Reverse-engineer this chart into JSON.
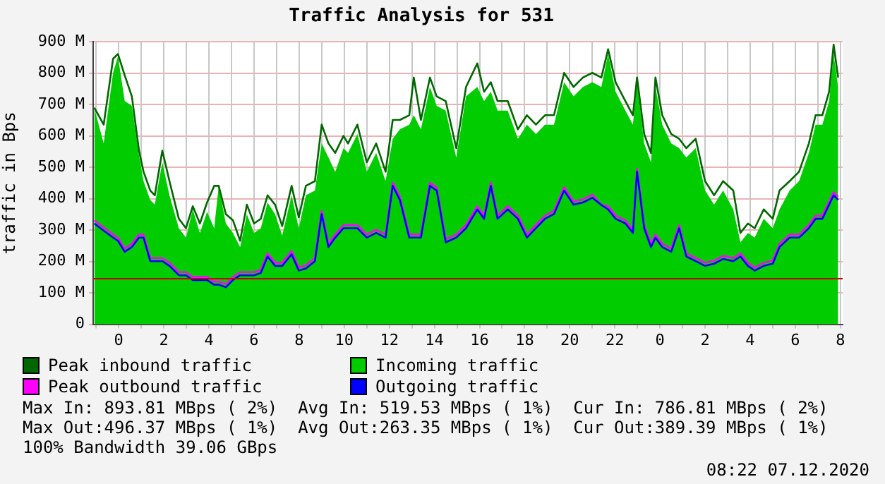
{
  "chart_data": {
    "type": "line",
    "title": "Traffic Analysis for 531",
    "ylabel": "traffic in Bps",
    "xlim": [
      "2020-12-05T22:52",
      "2020-12-07T08:06"
    ],
    "xticks": [
      {
        "value": "2020-12-05T23:00",
        "label": null
      },
      {
        "value": "2020-12-06T00:00",
        "label": "0"
      },
      {
        "value": "2020-12-06T01:00",
        "label": null
      },
      {
        "value": "2020-12-06T02:00",
        "label": "2"
      },
      {
        "value": "2020-12-06T03:00",
        "label": null
      },
      {
        "value": "2020-12-06T04:00",
        "label": "4"
      },
      {
        "value": "2020-12-06T05:00",
        "label": null
      },
      {
        "value": "2020-12-06T06:00",
        "label": "6"
      },
      {
        "value": "2020-12-06T07:00",
        "label": null
      },
      {
        "value": "2020-12-06T08:00",
        "label": "8"
      },
      {
        "value": "2020-12-06T09:00",
        "label": null
      },
      {
        "value": "2020-12-06T10:00",
        "label": "10"
      },
      {
        "value": "2020-12-06T11:00",
        "label": null
      },
      {
        "value": "2020-12-06T12:00",
        "label": "12"
      },
      {
        "value": "2020-12-06T13:00",
        "label": null
      },
      {
        "value": "2020-12-06T14:00",
        "label": "14"
      },
      {
        "value": "2020-12-06T15:00",
        "label": null
      },
      {
        "value": "2020-12-06T16:00",
        "label": "16"
      },
      {
        "value": "2020-12-06T17:00",
        "label": null
      },
      {
        "value": "2020-12-06T18:00",
        "label": "18"
      },
      {
        "value": "2020-12-06T19:00",
        "label": null
      },
      {
        "value": "2020-12-06T20:00",
        "label": "20"
      },
      {
        "value": "2020-12-06T21:00",
        "label": null
      },
      {
        "value": "2020-12-06T22:00",
        "label": "22"
      },
      {
        "value": "2020-12-06T23:00",
        "label": null
      },
      {
        "value": "2020-12-07T00:00",
        "label": "0"
      },
      {
        "value": "2020-12-07T01:00",
        "label": null
      },
      {
        "value": "2020-12-07T02:00",
        "label": "2"
      },
      {
        "value": "2020-12-07T03:00",
        "label": null
      },
      {
        "value": "2020-12-07T04:00",
        "label": "4"
      },
      {
        "value": "2020-12-07T05:00",
        "label": null
      },
      {
        "value": "2020-12-07T06:00",
        "label": "6"
      },
      {
        "value": "2020-12-07T07:00",
        "label": null
      },
      {
        "value": "2020-12-07T08:00",
        "label": "8"
      }
    ],
    "ylim": [
      0,
      900
    ],
    "yticks": [
      0,
      {
        "value": 100,
        "label": "100 M"
      },
      {
        "value": 200,
        "label": "200 M"
      },
      {
        "value": 300,
        "label": "300 M"
      },
      {
        "value": 400,
        "label": "400 M"
      },
      {
        "value": 500,
        "label": "500 M"
      },
      {
        "value": 600,
        "label": "600 M"
      },
      {
        "value": 700,
        "label": "700 M"
      },
      {
        "value": 800,
        "label": "800 M"
      },
      {
        "value": 900,
        "label": "900 M"
      }
    ],
    "grid": true,
    "legend": "bottom",
    "marker": "none",
    "ref_lines": [
      {
        "axis": "y",
        "value": 145,
        "color": "#cc0000"
      }
    ],
    "x": [
      "2020-12-05T22:55",
      "2020-12-05T23:20",
      "2020-12-05T23:45",
      "2020-12-05T23:58",
      "2020-12-06T00:16",
      "2020-12-06T00:35",
      "2020-12-06T00:54",
      "2020-12-06T01:06",
      "2020-12-06T01:24",
      "2020-12-06T01:36",
      "2020-12-06T01:56",
      "2020-12-06T02:15",
      "2020-12-06T02:40",
      "2020-12-06T02:59",
      "2020-12-06T03:17",
      "2020-12-06T03:36",
      "2020-12-06T03:55",
      "2020-12-06T04:14",
      "2020-12-06T04:26",
      "2020-12-06T04:45",
      "2020-12-06T05:04",
      "2020-12-06T05:23",
      "2020-12-06T05:41",
      "2020-12-06T06:00",
      "2020-12-06T06:18",
      "2020-12-06T06:36",
      "2020-12-06T06:56",
      "2020-12-06T07:15",
      "2020-12-06T07:40",
      "2020-12-06T07:59",
      "2020-12-06T08:18",
      "2020-12-06T08:42",
      "2020-12-06T09:00",
      "2020-12-06T09:18",
      "2020-12-06T09:36",
      "2020-12-06T09:58",
      "2020-12-06T10:10",
      "2020-12-06T10:35",
      "2020-12-06T11:00",
      "2020-12-06T11:25",
      "2020-12-06T11:50",
      "2020-12-06T12:09",
      "2020-12-06T12:28",
      "2020-12-06T12:53",
      "2020-12-06T13:05",
      "2020-12-06T13:24",
      "2020-12-06T13:48",
      "2020-12-06T14:06",
      "2020-12-06T14:30",
      "2020-12-06T14:58",
      "2020-12-06T15:24",
      "2020-12-06T15:54",
      "2020-12-06T16:12",
      "2020-12-06T16:30",
      "2020-12-06T16:48",
      "2020-12-06T17:15",
      "2020-12-06T17:42",
      "2020-12-06T18:06",
      "2020-12-06T18:30",
      "2020-12-06T18:54",
      "2020-12-06T19:18",
      "2020-12-06T19:45",
      "2020-12-06T20:10",
      "2020-12-06T20:35",
      "2020-12-06T21:00",
      "2020-12-06T21:24",
      "2020-12-06T21:42",
      "2020-12-06T22:02",
      "2020-12-06T22:28",
      "2020-12-06T22:48",
      "2020-12-06T22:59",
      "2020-12-06T23:18",
      "2020-12-06T23:36",
      "2020-12-06T23:48",
      "2020-12-07T00:06",
      "2020-12-07T00:30",
      "2020-12-07T00:51",
      "2020-12-07T01:10",
      "2020-12-07T01:35",
      "2020-12-07T02:00",
      "2020-12-07T02:24",
      "2020-12-07T02:48",
      "2020-12-07T03:15",
      "2020-12-07T03:34",
      "2020-12-07T03:54",
      "2020-12-07T04:12",
      "2020-12-07T04:36",
      "2020-12-07T05:00",
      "2020-12-07T05:18",
      "2020-12-07T05:45",
      "2020-12-07T06:10",
      "2020-12-07T06:36",
      "2020-12-07T06:54",
      "2020-12-07T07:12",
      "2020-12-07T07:30",
      "2020-12-07T07:42",
      "2020-12-07T07:54"
    ],
    "series": [
      {
        "name": "Peak inbound traffic",
        "color": "#006600",
        "values": [
          690,
          636,
          846,
          861,
          793,
          726,
          553,
          486,
          426,
          411,
          553,
          456,
          336,
          306,
          376,
          321,
          388,
          441,
          441,
          351,
          331,
          266,
          381,
          321,
          336,
          411,
          381,
          313,
          441,
          341,
          441,
          456,
          636,
          576,
          546,
          600,
          576,
          636,
          516,
          576,
          486,
          651,
          651,
          666,
          786,
          651,
          786,
          726,
          711,
          561,
          756,
          831,
          741,
          771,
          711,
          711,
          621,
          666,
          636,
          666,
          666,
          801,
          756,
          786,
          801,
          786,
          876,
          771,
          711,
          666,
          786,
          606,
          546,
          786,
          666,
          606,
          591,
          561,
          591,
          456,
          411,
          456,
          426,
          291,
          321,
          306,
          366,
          336,
          426,
          456,
          486,
          576,
          666,
          666,
          741,
          891,
          786
        ]
      },
      {
        "name": "Incoming traffic",
        "type": "area",
        "color": "#00cc00",
        "values": [
          688,
          576,
          801,
          853,
          711,
          696,
          538,
          456,
          396,
          381,
          516,
          411,
          306,
          276,
          366,
          291,
          358,
          306,
          441,
          321,
          291,
          246,
          351,
          291,
          306,
          388,
          351,
          283,
          411,
          306,
          411,
          426,
          576,
          531,
          486,
          561,
          546,
          606,
          486,
          546,
          456,
          591,
          621,
          636,
          666,
          621,
          756,
          696,
          681,
          531,
          726,
          756,
          711,
          741,
          681,
          681,
          591,
          636,
          606,
          636,
          636,
          771,
          726,
          756,
          771,
          756,
          861,
          741,
          681,
          636,
          771,
          576,
          516,
          756,
          636,
          576,
          561,
          531,
          561,
          426,
          381,
          426,
          366,
          261,
          291,
          276,
          336,
          306,
          366,
          426,
          456,
          546,
          636,
          636,
          711,
          861,
          756
        ]
      },
      {
        "name": "Peak outbound traffic",
        "color": "#ff00ff",
        "values": [
          331,
          308,
          286,
          276,
          241,
          256,
          286,
          286,
          211,
          211,
          211,
          196,
          166,
          166,
          151,
          151,
          151,
          136,
          136,
          128,
          151,
          166,
          166,
          166,
          173,
          226,
          196,
          196,
          233,
          181,
          188,
          211,
          361,
          256,
          286,
          316,
          316,
          316,
          286,
          301,
          286,
          451,
          406,
          286,
          286,
          286,
          451,
          436,
          271,
          286,
          316,
          376,
          346,
          451,
          346,
          376,
          346,
          286,
          316,
          346,
          361,
          436,
          391,
          398,
          413,
          380,
          376,
          346,
          331,
          301,
          496,
          316,
          256,
          286,
          256,
          241,
          316,
          226,
          211,
          196,
          203,
          218,
          211,
          226,
          196,
          181,
          196,
          203,
          256,
          286,
          286,
          316,
          346,
          346,
          391,
          421,
          406
        ]
      },
      {
        "name": "Outgoing traffic",
        "color": "#0000ff",
        "values": [
          321,
          298,
          276,
          266,
          231,
          246,
          276,
          276,
          201,
          201,
          201,
          186,
          156,
          156,
          141,
          141,
          141,
          126,
          126,
          118,
          141,
          156,
          156,
          156,
          163,
          216,
          186,
          186,
          223,
          171,
          178,
          201,
          351,
          246,
          276,
          306,
          306,
          306,
          276,
          291,
          276,
          441,
          396,
          276,
          276,
          276,
          441,
          426,
          261,
          276,
          306,
          366,
          336,
          441,
          336,
          366,
          336,
          276,
          306,
          336,
          351,
          426,
          381,
          388,
          403,
          380,
          366,
          336,
          321,
          291,
          486,
          306,
          246,
          276,
          246,
          231,
          306,
          216,
          201,
          186,
          193,
          208,
          201,
          216,
          186,
          171,
          186,
          193,
          246,
          276,
          276,
          306,
          336,
          336,
          381,
          411,
          396
        ]
      }
    ],
    "annotations": [
      "Max In: 893.81 MBps ( 2%)  Avg In: 519.53 MBps ( 1%)  Cur In: 786.81 MBps ( 2%)",
      "Max Out:496.37 MBps ( 1%)  Avg Out:263.35 MBps ( 1%)  Cur Out:389.39 MBps ( 1%)",
      "100% Bandwidth 39.06 GBps",
      "08:22 07.12.2020"
    ]
  }
}
